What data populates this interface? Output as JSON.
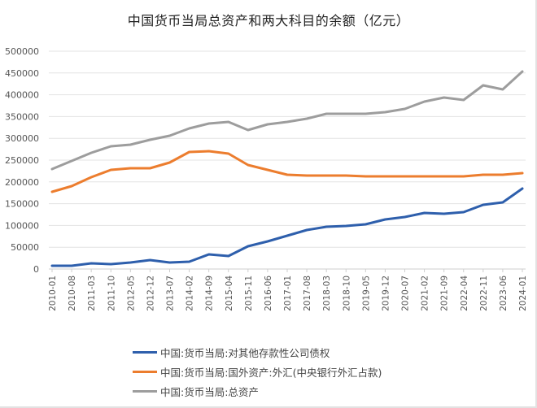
{
  "title": "中国货币当局总资产和两大科目的余额（亿元）",
  "chart_data": {
    "type": "line",
    "title": "中国货币当局总资产和两大科目的余额（亿元）",
    "xlabel": "",
    "ylabel": "",
    "ylim": [
      0,
      500000
    ],
    "yticks": [
      0,
      50000,
      100000,
      150000,
      200000,
      250000,
      300000,
      350000,
      400000,
      450000,
      500000
    ],
    "grid": true,
    "legend_position": "bottom",
    "x": [
      "2010-01",
      "2010-08",
      "2011-03",
      "2011-10",
      "2012-05",
      "2012-12",
      "2013-07",
      "2014-02",
      "2014-09",
      "2015-04",
      "2015-11",
      "2016-06",
      "2017-01",
      "2017-08",
      "2018-03",
      "2018-10",
      "2019-05",
      "2019-12",
      "2020-07",
      "2021-02",
      "2021-09",
      "2022-04",
      "2022-11",
      "2023-06",
      "2024-01"
    ],
    "series": [
      {
        "name": "中国:货币当局:对其他存款性公司债权",
        "color": "#2e5fac",
        "values": [
          7500,
          7500,
          13100,
          11200,
          14900,
          20500,
          14900,
          16800,
          33600,
          29900,
          52200,
          63400,
          76500,
          89600,
          97000,
          98900,
          102600,
          113800,
          119400,
          128700,
          126900,
          130600,
          147400,
          153000,
          184700
        ]
      },
      {
        "name": "中国:货币当局:国外资产:外汇(中央银行外汇占款)",
        "color": "#ec7d2e",
        "values": [
          177200,
          190300,
          210800,
          227600,
          231300,
          231300,
          244400,
          268700,
          270500,
          264900,
          238800,
          227600,
          216400,
          214600,
          214600,
          214600,
          212700,
          212700,
          212700,
          212700,
          212700,
          212700,
          216400,
          216400,
          220100
        ]
      },
      {
        "name": "中国:货币当局:总资产",
        "color": "#9d9d9d",
        "values": [
          229500,
          248100,
          266800,
          281700,
          285400,
          296600,
          306000,
          322800,
          333900,
          337700,
          319000,
          332100,
          337700,
          345100,
          356300,
          356300,
          356300,
          360100,
          367500,
          384300,
          393700,
          388100,
          421600,
          412300,
          453400
        ]
      }
    ]
  },
  "legend": [
    {
      "label": "中国:货币当局:对其他存款性公司债权",
      "color": "#2e5fac"
    },
    {
      "label": "中国:货币当局:国外资产:外汇(中央银行外汇占款)",
      "color": "#ec7d2e"
    },
    {
      "label": "中国:货币当局:总资产",
      "color": "#9d9d9d"
    }
  ]
}
